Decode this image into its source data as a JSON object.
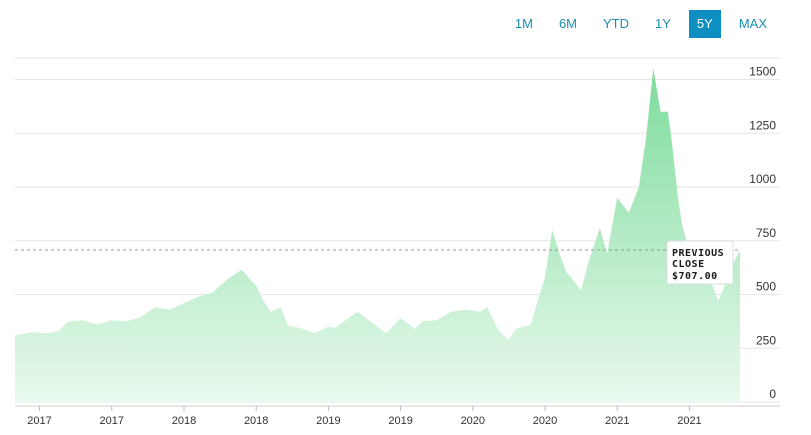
{
  "range_selector": {
    "buttons": [
      "1M",
      "6M",
      "YTD",
      "1Y",
      "5Y",
      "MAX"
    ],
    "active": "5Y"
  },
  "colors": {
    "area_top": "#7ddc9b",
    "area_bottom": "#e9f9ee",
    "active_button": "#0e8fc2",
    "button_text": "#1a8fb0",
    "reference_line": "#999999"
  },
  "chart_data": {
    "type": "area",
    "x_start": 2016.83,
    "x_end": 2021.85,
    "ylim": [
      0,
      1600
    ],
    "y_ticks": [
      0,
      250,
      500,
      750,
      1000,
      1250,
      1500
    ],
    "x_tick_labels": [
      "2017",
      "2017",
      "2018",
      "2018",
      "2019",
      "2019",
      "2020",
      "2020",
      "2021",
      "2021"
    ],
    "x_tick_values": [
      2017.0,
      2017.5,
      2018.0,
      2018.5,
      2019.0,
      2019.5,
      2020.0,
      2020.5,
      2021.0,
      2021.5
    ],
    "reference_line": {
      "value": 707.0,
      "label_line1": "PREVIOUS",
      "label_line2": "CLOSE",
      "value_label": "$707.00"
    },
    "grid": true,
    "series": [
      {
        "x": [
          2016.83,
          2016.95,
          2017.05,
          2017.13,
          2017.2,
          2017.3,
          2017.4,
          2017.5,
          2017.6,
          2017.7,
          2017.8,
          2017.9,
          2018.0,
          2018.1,
          2018.2,
          2018.3,
          2018.4,
          2018.5,
          2018.55,
          2018.6,
          2018.67,
          2018.72,
          2018.8,
          2018.9,
          2019.0,
          2019.05,
          2019.12,
          2019.2,
          2019.3,
          2019.4,
          2019.5,
          2019.6,
          2019.65,
          2019.75,
          2019.85,
          2019.95,
          2020.05,
          2020.1,
          2020.18,
          2020.25,
          2020.3,
          2020.4,
          2020.5,
          2020.55,
          2020.6,
          2020.65,
          2020.68,
          2020.75,
          2020.8,
          2020.88,
          2020.93,
          2021.0,
          2021.08,
          2021.15,
          2021.2,
          2021.25,
          2021.3,
          2021.35,
          2021.38,
          2021.42,
          2021.45,
          2021.5,
          2021.55,
          2021.6,
          2021.65,
          2021.7,
          2021.75,
          2021.8,
          2021.85
        ],
        "y": [
          310,
          325,
          320,
          330,
          375,
          380,
          360,
          380,
          375,
          395,
          440,
          430,
          460,
          490,
          510,
          570,
          615,
          540,
          470,
          420,
          440,
          355,
          345,
          320,
          350,
          345,
          380,
          420,
          370,
          320,
          390,
          340,
          375,
          380,
          420,
          430,
          420,
          440,
          330,
          290,
          340,
          360,
          580,
          800,
          690,
          600,
          580,
          520,
          650,
          810,
          690,
          950,
          880,
          1000,
          1230,
          1550,
          1350,
          1350,
          1200,
          950,
          820,
          700,
          640,
          600,
          560,
          470,
          550,
          640,
          707
        ]
      }
    ]
  }
}
